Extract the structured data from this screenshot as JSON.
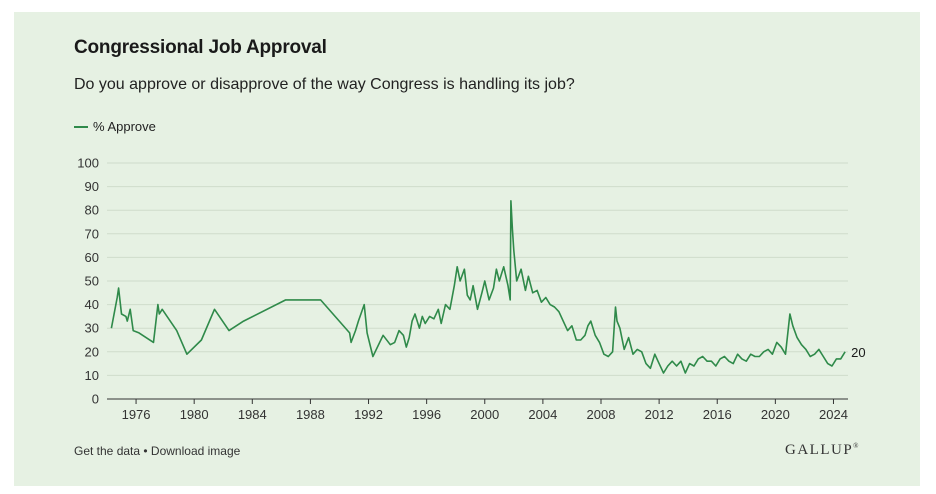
{
  "card": {
    "title": "Congressional Job Approval",
    "subtitle": "Do you approve or disapprove of the way Congress is handling its job?",
    "footer": {
      "get_data": "Get the data",
      "separator": " • ",
      "download": "Download image"
    },
    "brand": "GALLUP",
    "brand_mark": "®"
  },
  "colors": {
    "background": "#e6f1e3",
    "series": "#2f8a4a",
    "grid": "#cfdccb",
    "axis": "#333333"
  },
  "chart_data": {
    "type": "line",
    "xlim": [
      1974,
      2025
    ],
    "ylim": [
      0,
      100
    ],
    "yticks": [
      0,
      10,
      20,
      30,
      40,
      50,
      60,
      70,
      80,
      90,
      100
    ],
    "xticks": [
      1976,
      1980,
      1984,
      1988,
      1992,
      1996,
      2000,
      2004,
      2008,
      2012,
      2016,
      2020,
      2024
    ],
    "grid": true,
    "legend_position": "top-left",
    "end_label": "20",
    "series": [
      {
        "name": "% Approve",
        "x": [
          1974.3,
          1974.7,
          1974.8,
          1975.0,
          1975.3,
          1975.4,
          1975.6,
          1975.8,
          1976.2,
          1977.2,
          1977.5,
          1977.6,
          1977.8,
          1978.8,
          1979.5,
          1980.5,
          1981.4,
          1982.4,
          1983.4,
          1986.3,
          1988.7,
          1990.7,
          1990.8,
          1991.1,
          1991.3,
          1991.7,
          1991.9,
          1992.3,
          1993.0,
          1993.5,
          1993.8,
          1994.1,
          1994.4,
          1994.6,
          1994.8,
          1995.0,
          1995.2,
          1995.5,
          1995.7,
          1995.9,
          1996.2,
          1996.5,
          1996.8,
          1997.0,
          1997.3,
          1997.6,
          1997.9,
          1998.1,
          1998.3,
          1998.6,
          1998.8,
          1999.0,
          1999.2,
          1999.5,
          1999.8,
          2000.0,
          2000.3,
          2000.6,
          2000.8,
          2001.0,
          2001.3,
          2001.6,
          2001.75,
          2001.8,
          2001.9,
          2002.0,
          2002.2,
          2002.5,
          2002.8,
          2003.0,
          2003.3,
          2003.6,
          2003.9,
          2004.2,
          2004.5,
          2004.8,
          2005.1,
          2005.4,
          2005.7,
          2006.0,
          2006.3,
          2006.6,
          2006.9,
          2007.1,
          2007.3,
          2007.6,
          2007.9,
          2008.2,
          2008.5,
          2008.8,
          2009.0,
          2009.1,
          2009.3,
          2009.6,
          2009.9,
          2010.2,
          2010.5,
          2010.8,
          2011.1,
          2011.4,
          2011.7,
          2012.0,
          2012.3,
          2012.6,
          2012.9,
          2013.2,
          2013.5,
          2013.8,
          2014.1,
          2014.4,
          2014.7,
          2015.0,
          2015.3,
          2015.6,
          2015.9,
          2016.2,
          2016.5,
          2016.8,
          2017.1,
          2017.4,
          2017.7,
          2018.0,
          2018.3,
          2018.6,
          2018.9,
          2019.2,
          2019.5,
          2019.8,
          2020.1,
          2020.4,
          2020.7,
          2021.0,
          2021.2,
          2021.5,
          2021.8,
          2022.1,
          2022.4,
          2022.7,
          2023.0,
          2023.3,
          2023.6,
          2023.9,
          2024.2,
          2024.5,
          2024.8
        ],
        "values": [
          30,
          43,
          47,
          36,
          35,
          33,
          38,
          29,
          28,
          24,
          40,
          36,
          38,
          29,
          19,
          25,
          38,
          29,
          33,
          42,
          42,
          28,
          24,
          29,
          33,
          40,
          28,
          18,
          27,
          23,
          24,
          29,
          27,
          22,
          26,
          33,
          36,
          30,
          35,
          32,
          35,
          34,
          38,
          32,
          40,
          38,
          48,
          56,
          50,
          55,
          44,
          42,
          48,
          38,
          45,
          50,
          42,
          47,
          55,
          50,
          56,
          48,
          42,
          84,
          72,
          63,
          50,
          55,
          46,
          52,
          45,
          46,
          41,
          43,
          40,
          39,
          37,
          33,
          29,
          31,
          25,
          25,
          27,
          31,
          33,
          27,
          24,
          19,
          18,
          20,
          39,
          33,
          30,
          21,
          26,
          19,
          21,
          20,
          15,
          13,
          19,
          15,
          11,
          14,
          16,
          14,
          16,
          11,
          15,
          14,
          17,
          18,
          16,
          16,
          14,
          17,
          18,
          16,
          15,
          19,
          17,
          16,
          19,
          18,
          18,
          20,
          21,
          19,
          24,
          22,
          19,
          36,
          31,
          26,
          23,
          21,
          18,
          19,
          21,
          18,
          15,
          14,
          17,
          17,
          20
        ]
      }
    ]
  }
}
